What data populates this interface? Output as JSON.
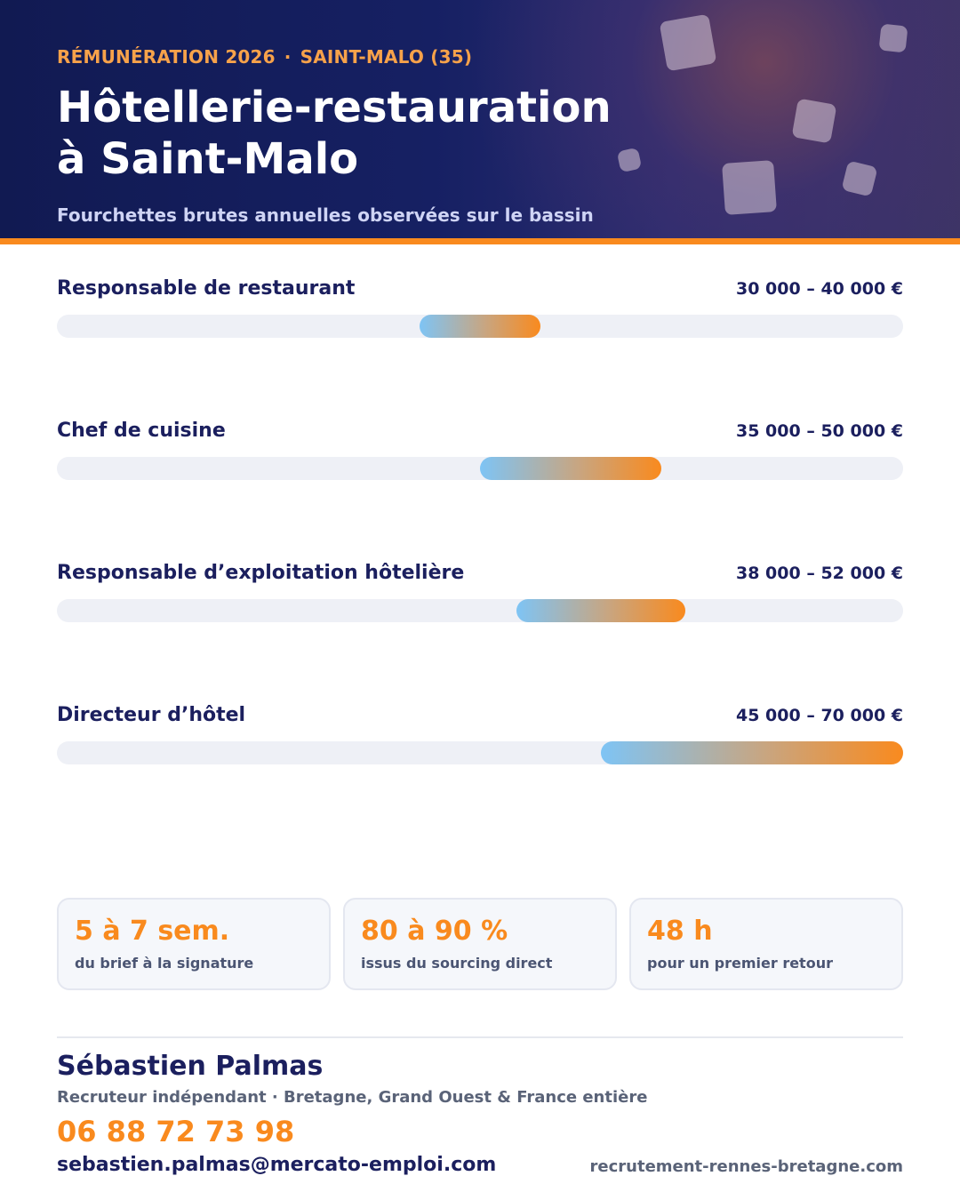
{
  "header": {
    "eyebrow_left": "RÉMUNÉRATION 2026",
    "eyebrow_sep": "·",
    "eyebrow_right": "SAINT-MALO (35)",
    "title_line1": "Hôtellerie-restauration",
    "title_line2": "à Saint-Malo",
    "subtitle": "Fourchettes brutes annuelles observées sur le bassin"
  },
  "colors": {
    "navy": "#1b1f5e",
    "accent_orange": "#f98a1e",
    "bar_start_blue": "#7ec4f5",
    "track": "#eef0f6"
  },
  "salary_ranges": [
    {
      "role": "Responsable de restaurant",
      "range_label": "30 000 – 40 000 €",
      "min": 30000,
      "max": 40000
    },
    {
      "role": "Chef de cuisine",
      "range_label": "35 000 – 50 000 €",
      "min": 35000,
      "max": 50000
    },
    {
      "role": "Responsable d’exploitation hôtelière",
      "range_label": "38 000 – 52 000 €",
      "min": 38000,
      "max": 52000
    },
    {
      "role": "Directeur d’hôtel",
      "range_label": "45 000 – 70 000 €",
      "min": 45000,
      "max": 70000
    }
  ],
  "stats": [
    {
      "value": "5 à 7 sem.",
      "caption": "du brief à la signature"
    },
    {
      "value": "80 à 90 %",
      "caption": "issus du sourcing direct"
    },
    {
      "value": "48 h",
      "caption": "pour un premier retour"
    }
  ],
  "contact": {
    "name": "Sébastien Palmas",
    "role": "Recruteur indépendant · Bretagne, Grand Ouest & France entière",
    "phone": "06 88 72 73 98",
    "email": "sebastien.palmas@mercato-emploi.com",
    "website": "recrutement-rennes-bretagne.com"
  }
}
